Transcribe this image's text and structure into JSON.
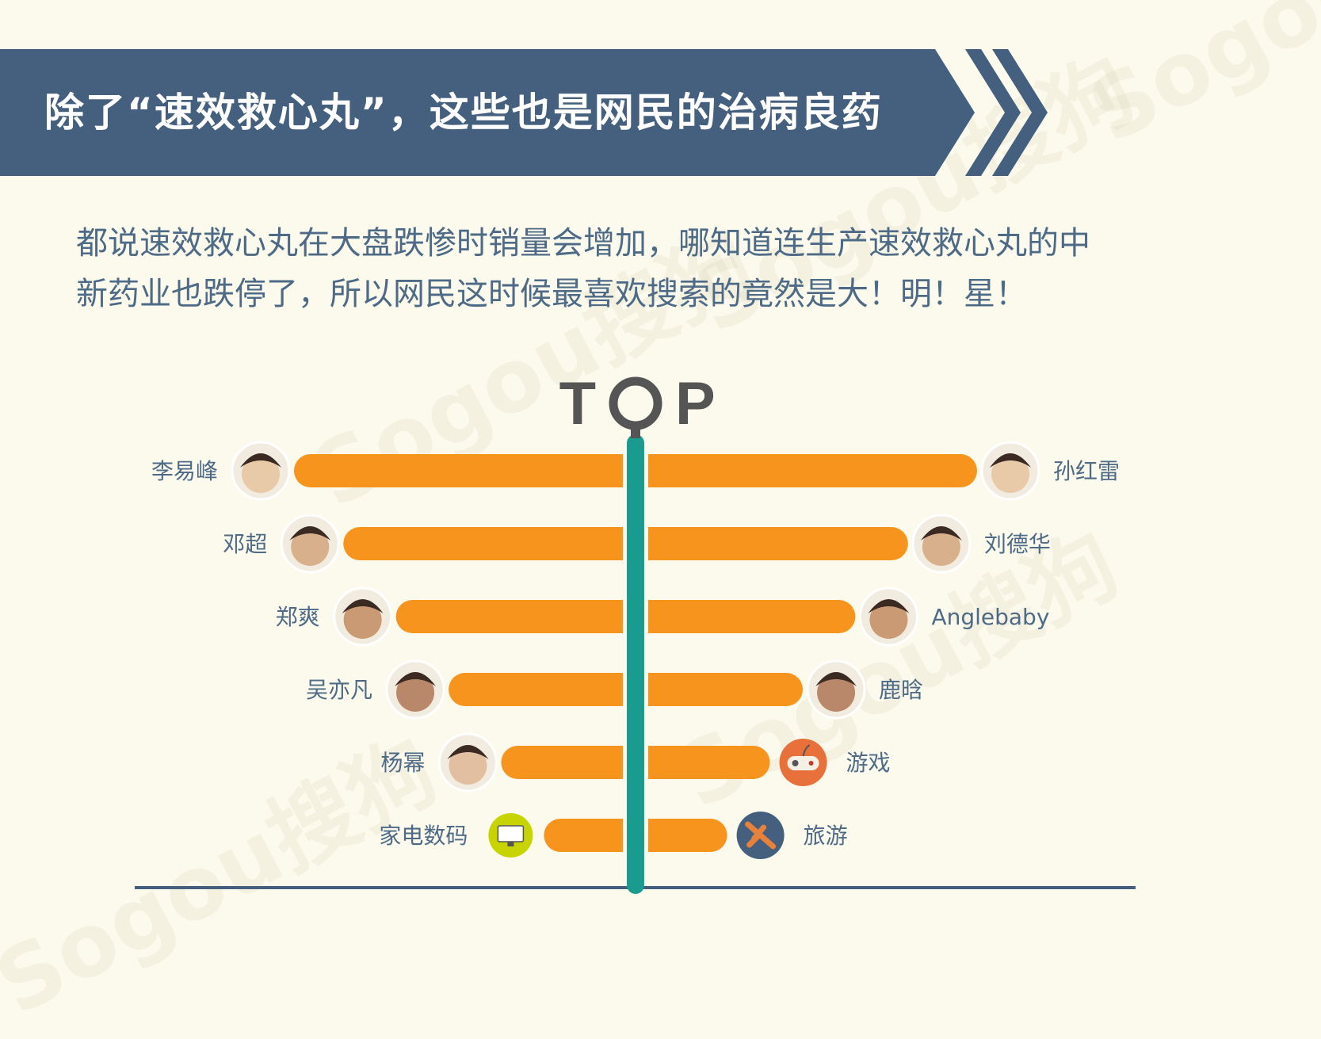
{
  "header": {
    "title": "除了“速效救心丸”，这些也是网民的治病良药"
  },
  "intro": {
    "line1": "都说速效救心丸在大盘跌惨时销量会增加，哪知道连生产速效救心丸的中",
    "line2": "新药业也跌停了，所以网民这时候最喜欢搜索的竟然是大！明！星！"
  },
  "watermarks": [
    "Sogou搜狗",
    "Sogou搜狗",
    "Sogou搜狗",
    "Sogou搜狗",
    "Sogou搜狗"
  ],
  "colors": {
    "banner": "#44607e",
    "bar": "#f7941d",
    "stem": "#1a9b8f",
    "label": "#4d6a87",
    "top_text": "#555555",
    "baseline": "#44607e"
  },
  "chart_data": {
    "type": "bar",
    "center_label": "TOP",
    "left": {
      "categories": [
        "李易峰",
        "邓超",
        "郑爽",
        "吴亦凡",
        "杨幂",
        "家电数码"
      ],
      "values": [
        10,
        8.5,
        6.9,
        5.3,
        3.7,
        2.4
      ],
      "icons": [
        "avatar-li-yifeng",
        "avatar-deng-chao",
        "avatar-zheng-shuang",
        "avatar-wu-yifan",
        "avatar-yang-mi",
        "appliance-icon"
      ]
    },
    "right": {
      "categories": [
        "孙红雷",
        "刘德华",
        "Anglebaby",
        "鹿晗",
        "游戏",
        "旅游"
      ],
      "values": [
        10,
        7.9,
        6.3,
        4.7,
        3.7,
        2.4
      ],
      "icons": [
        "avatar-sun-honglei",
        "avatar-liu-dehua",
        "avatar-anglebaby",
        "avatar-lu-han",
        "gamepad-icon",
        "airplane-icon"
      ]
    }
  }
}
